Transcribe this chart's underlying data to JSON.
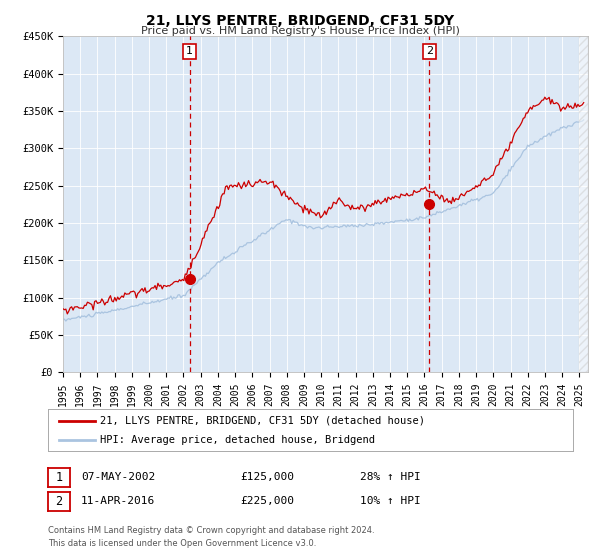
{
  "title": "21, LLYS PENTRE, BRIDGEND, CF31 5DY",
  "subtitle": "Price paid vs. HM Land Registry's House Price Index (HPI)",
  "ylim": [
    0,
    450000
  ],
  "yticks": [
    0,
    50000,
    100000,
    150000,
    200000,
    250000,
    300000,
    350000,
    400000,
    450000
  ],
  "ytick_labels": [
    "£0",
    "£50K",
    "£100K",
    "£150K",
    "£200K",
    "£250K",
    "£300K",
    "£350K",
    "£400K",
    "£450K"
  ],
  "xlim_start": 1995.0,
  "xlim_end": 2025.5,
  "hpi_color": "#aac4e0",
  "price_color": "#cc0000",
  "bg_color": "#dce8f5",
  "transaction1_date": 2002.35,
  "transaction1_price": 125000,
  "transaction1_label": "07-MAY-2002",
  "transaction1_pct": "28% ↑ HPI",
  "transaction2_date": 2016.28,
  "transaction2_price": 225000,
  "transaction2_label": "11-APR-2016",
  "transaction2_pct": "10% ↑ HPI",
  "legend_line1": "21, LLYS PENTRE, BRIDGEND, CF31 5DY (detached house)",
  "legend_line2": "HPI: Average price, detached house, Bridgend",
  "footer1": "Contains HM Land Registry data © Crown copyright and database right 2024.",
  "footer2": "This data is licensed under the Open Government Licence v3.0.",
  "marker1_num": "1",
  "marker2_num": "2",
  "title_fontsize": 10,
  "subtitle_fontsize": 8
}
